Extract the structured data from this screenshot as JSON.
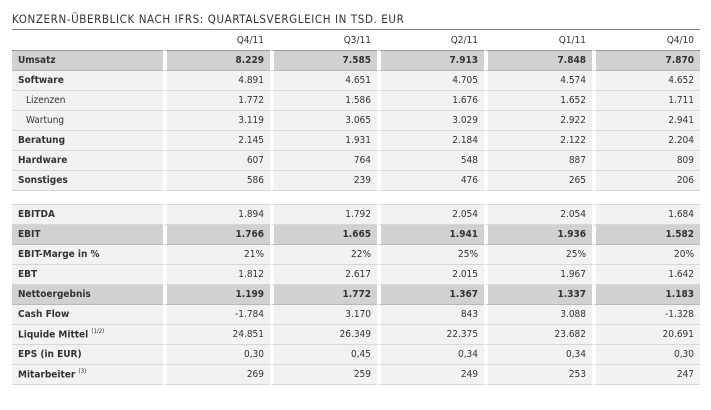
{
  "title": "KONZERN-ÜBERBLICK NACH IFRS: QUARTALSVERGLEICH IN TSD. EUR",
  "columns": [
    "Q4/11",
    "Q3/11",
    "Q2/11",
    "Q1/11",
    "Q4/10"
  ],
  "section1": [
    {
      "label": "Umsatz",
      "kind": "sum",
      "values": [
        "8.229",
        "7.585",
        "7.913",
        "7.848",
        "7.870"
      ]
    },
    {
      "label": "Software",
      "kind": "strong",
      "values": [
        "4.891",
        "4.651",
        "4.705",
        "4.574",
        "4.652"
      ]
    },
    {
      "label": "Lizenzen",
      "kind": "sub",
      "values": [
        "1.772",
        "1.586",
        "1.676",
        "1.652",
        "1.711"
      ]
    },
    {
      "label": "Wartung",
      "kind": "sub",
      "values": [
        "3.119",
        "3.065",
        "3.029",
        "2.922",
        "2.941"
      ]
    },
    {
      "label": "Beratung",
      "kind": "strong",
      "values": [
        "2.145",
        "1.931",
        "2.184",
        "2.122",
        "2.204"
      ]
    },
    {
      "label": "Hardware",
      "kind": "strong",
      "values": [
        "607",
        "764",
        "548",
        "887",
        "809"
      ]
    },
    {
      "label": "Sonstiges",
      "kind": "strong",
      "values": [
        "586",
        "239",
        "476",
        "265",
        "206"
      ]
    }
  ],
  "section2": [
    {
      "label": "EBITDA",
      "kind": "strong",
      "values": [
        "1.894",
        "1.792",
        "2.054",
        "2.054",
        "1.684"
      ]
    },
    {
      "label": "EBIT",
      "kind": "sum",
      "values": [
        "1.766",
        "1.665",
        "1.941",
        "1.936",
        "1.582"
      ]
    },
    {
      "label": "EBIT-Marge in %",
      "kind": "strong",
      "values": [
        "21%",
        "22%",
        "25%",
        "25%",
        "20%"
      ]
    },
    {
      "label": "EBT",
      "kind": "strong",
      "values": [
        "1.812",
        "2.617",
        "2.015",
        "1.967",
        "1.642"
      ]
    },
    {
      "label": "Nettoergebnis",
      "kind": "sum",
      "values": [
        "1.199",
        "1.772",
        "1.367",
        "1.337",
        "1.183"
      ]
    },
    {
      "label": "Cash Flow",
      "kind": "strong",
      "values": [
        "-1.784",
        "3.170",
        "843",
        "3.088",
        "-1.328"
      ]
    },
    {
      "label": "Liquide Mittel",
      "note": "(1/2)",
      "kind": "strong",
      "values": [
        "24.851",
        "26.349",
        "22.375",
        "23.682",
        "20.691"
      ]
    },
    {
      "label": "EPS (in EUR)",
      "kind": "strong",
      "values": [
        "0,30",
        "0,45",
        "0,34",
        "0,34",
        "0,30"
      ]
    },
    {
      "label": "Mitarbeiter",
      "note": "(3)",
      "kind": "strong",
      "values": [
        "269",
        "259",
        "249",
        "253",
        "247"
      ]
    }
  ]
}
